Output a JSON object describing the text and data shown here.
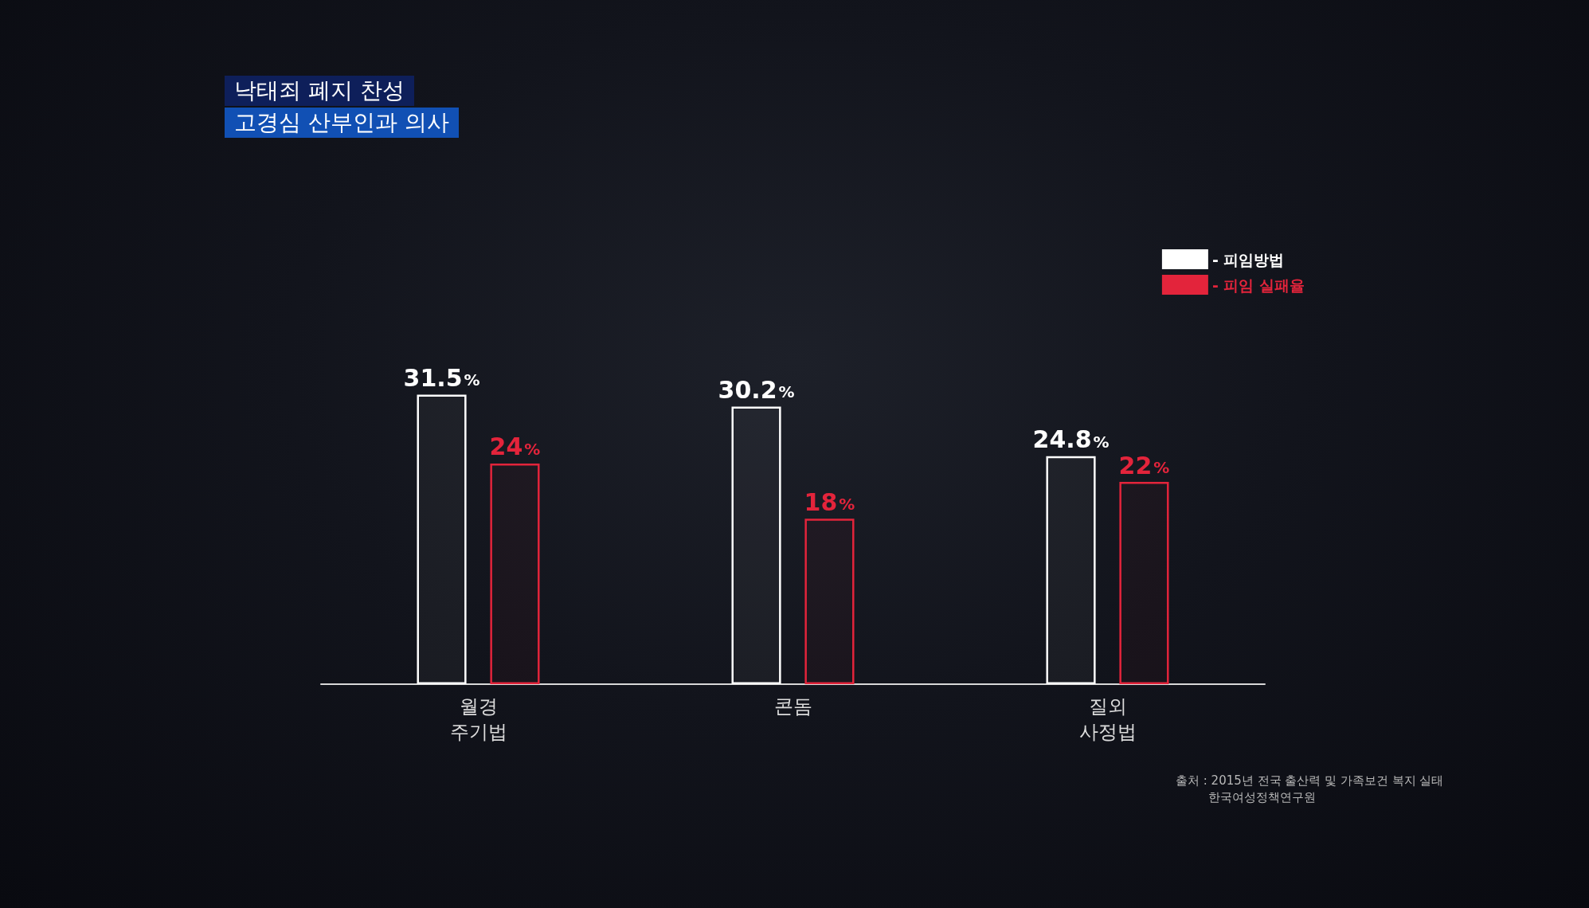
{
  "chart_data": {
    "type": "bar",
    "categories": [
      "월경\n주기법",
      "콘돔",
      "질외\n사정법"
    ],
    "series": [
      {
        "name": "- 피임방법",
        "color": "#ffffff",
        "values": [
          31.5,
          30.2,
          24.8
        ],
        "value_labels": [
          "31.5%",
          "30.2%",
          "24.8%"
        ]
      },
      {
        "name": "- 피임 실패율",
        "color": "#e3243b",
        "values": [
          24,
          18,
          22
        ],
        "value_labels": [
          "24%",
          "18%",
          "22%"
        ]
      }
    ],
    "legend": "top right",
    "grid": false,
    "tick_labels": "x",
    "annotations": [
      "낙태죄 폐지 찬성",
      "고경심 산부인과 의사",
      "출처 : 2015년 전국 출산력 및 가족보건 복지 실태\n한국여성정책연구원"
    ]
  }
}
